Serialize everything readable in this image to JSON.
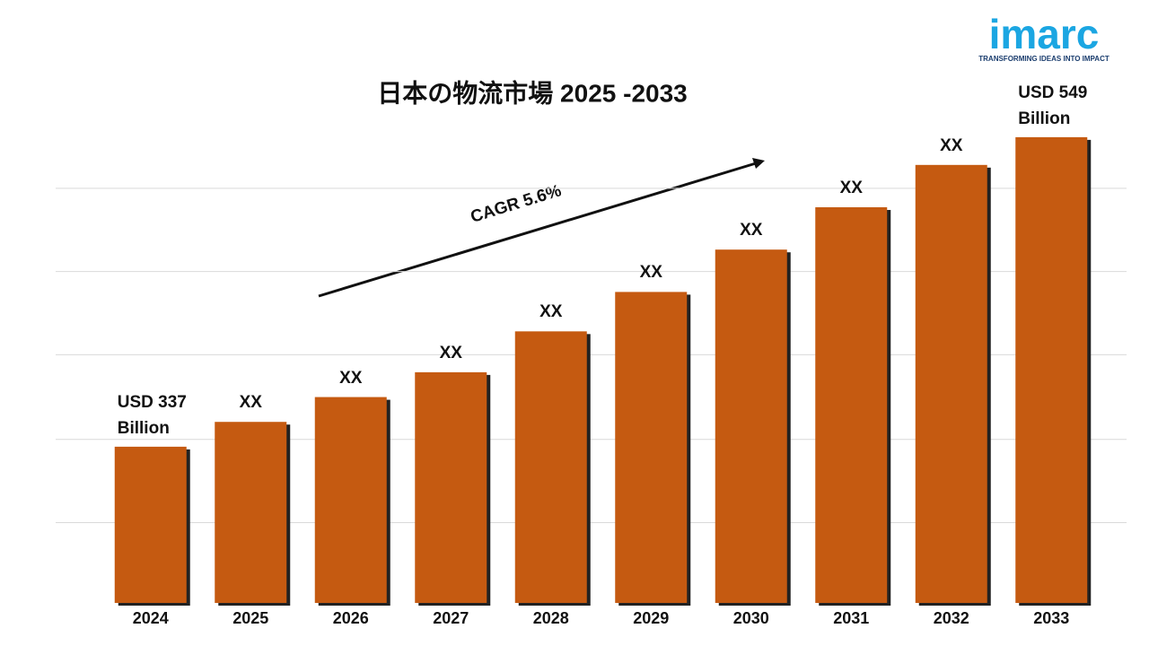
{
  "chart_data": {
    "type": "bar",
    "title": "日本の物流市場 2025 -2033",
    "categories": [
      "2024",
      "2025",
      "2026",
      "2027",
      "2028",
      "2029",
      "2030",
      "2031",
      "2032",
      "2033"
    ],
    "values": [
      337,
      354,
      371,
      388,
      416,
      443,
      472,
      501,
      530,
      549
    ],
    "value_labels": [
      "USD 337 Billion",
      "XX",
      "XX",
      "XX",
      "XX",
      "XX",
      "XX",
      "XX",
      "XX",
      "USD 549 Billion"
    ],
    "color": "#c55a11",
    "ylim": [
      230,
      560
    ],
    "yticks": [
      285,
      342,
      400,
      457,
      514
    ],
    "grid": true,
    "annotation": "CAGR 5.6%"
  },
  "logo": {
    "name": "imarc",
    "tagline": "TRANSFORMING IDEAS INTO IMPACT"
  }
}
